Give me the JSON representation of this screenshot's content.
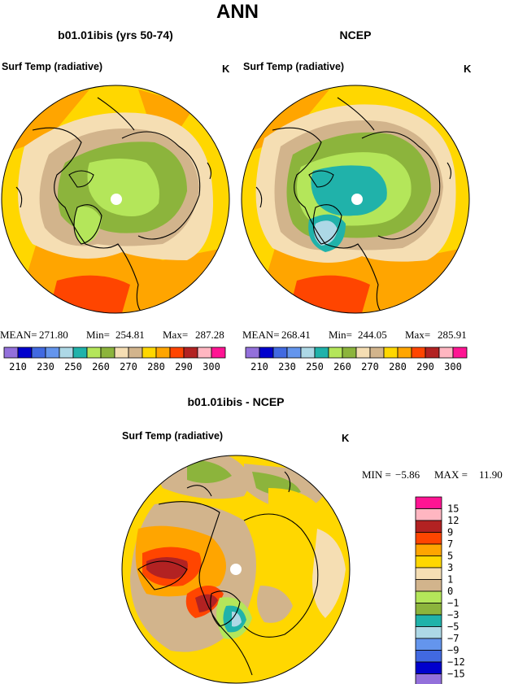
{
  "page_title": "ANN",
  "panels": [
    {
      "model": "b01.01ibis (yrs 50-74)",
      "variable": "Surf Temp (radiative)",
      "units": "K",
      "stats": {
        "mean_label": "MEAN=",
        "mean": "271.80",
        "min_label": "Min=",
        "min": "254.81",
        "max_label": "Max=",
        "max": "287.28"
      }
    },
    {
      "model": "NCEP",
      "variable": "Surf Temp (radiative)",
      "units": "K",
      "stats": {
        "mean_label": "MEAN=",
        "mean": "268.41",
        "min_label": "Min=",
        "min": "244.05",
        "max_label": "Max=",
        "max": "285.91"
      }
    }
  ],
  "abs_colorbar": {
    "colors": [
      "#9370db",
      "#0000cd",
      "#4169e1",
      "#6495ed",
      "#add8e6",
      "#20b2aa",
      "#b4e65a",
      "#8cb43c",
      "#f5deb3",
      "#d2b48c",
      "#ffd700",
      "#ffa500",
      "#ff4500",
      "#b22222",
      "#ffb6c1",
      "#ff1493"
    ],
    "labels": [
      "210",
      "230",
      "250",
      "260",
      "270",
      "280",
      "290",
      "300"
    ]
  },
  "diff_panel": {
    "title": "b01.01ibis - NCEP",
    "variable": "Surf Temp (radiative)",
    "units": "K",
    "min_label": "MIN =",
    "min": "−5.86",
    "max_label": "MAX =",
    "max": "11.90"
  },
  "diff_colorbar": {
    "colors": [
      "#ff1493",
      "#ffb6c1",
      "#b22222",
      "#ff4500",
      "#ffa500",
      "#ffd700",
      "#f5deb3",
      "#d2b48c",
      "#b4e65a",
      "#8cb43c",
      "#20b2aa",
      "#add8e6",
      "#6495ed",
      "#4169e1",
      "#0000cd",
      "#9370db"
    ],
    "labels": [
      "15",
      "12",
      "9",
      "7",
      "5",
      "3",
      "1",
      "0",
      "−1",
      "−3",
      "−5",
      "−7",
      "−9",
      "−12",
      "−15"
    ]
  }
}
